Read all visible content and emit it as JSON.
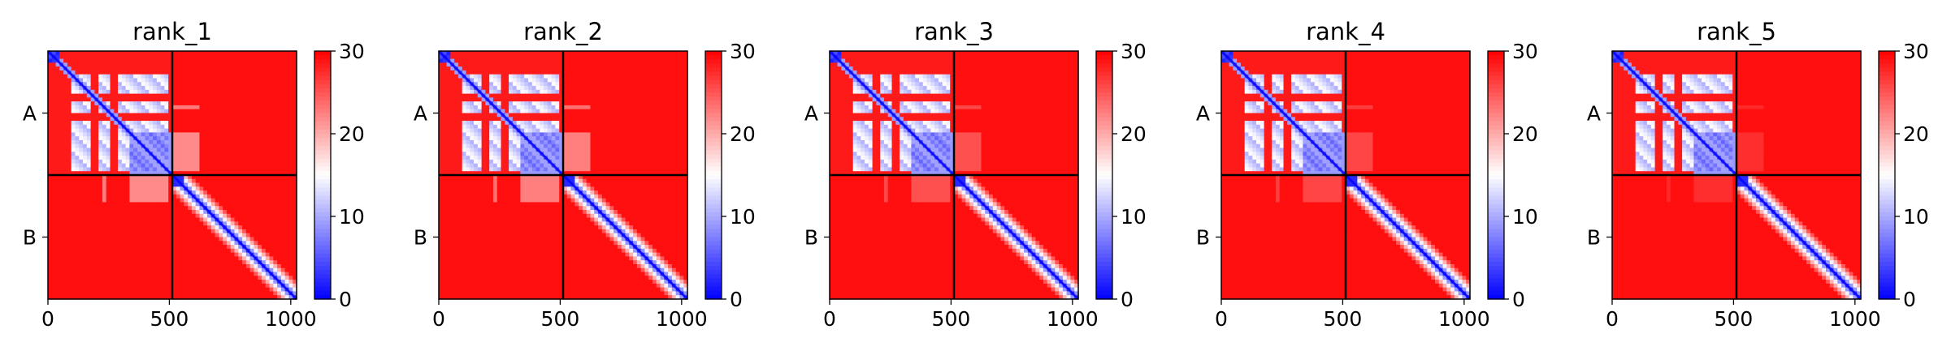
{
  "figure": {
    "colors": {
      "low": "#0000ff",
      "mid": "#ffffff",
      "high": "#ff0000",
      "boundary": "#000000"
    }
  },
  "chart_data": [
    {
      "type": "heatmap",
      "title": "rank_1",
      "xlabel": "",
      "ylabel": "",
      "xlim": [
        0,
        1024
      ],
      "x_ticks": [
        0,
        500,
        1000
      ],
      "x_tick_labels": [
        "0",
        "500",
        "1000"
      ],
      "chain_boundary": 512,
      "chains": [
        "A",
        "B"
      ],
      "colorbar": {
        "vmin": 0,
        "vmax": 30,
        "ticks": [
          0,
          10,
          20,
          30
        ],
        "tick_labels": [
          "0",
          "10",
          "20",
          "30"
        ]
      },
      "offdiag_level": 0.6
    },
    {
      "type": "heatmap",
      "title": "rank_2",
      "xlabel": "",
      "ylabel": "",
      "xlim": [
        0,
        1024
      ],
      "x_ticks": [
        0,
        500,
        1000
      ],
      "x_tick_labels": [
        "0",
        "500",
        "1000"
      ],
      "chain_boundary": 512,
      "chains": [
        "A",
        "B"
      ],
      "colorbar": {
        "vmin": 0,
        "vmax": 30,
        "ticks": [
          0,
          10,
          20,
          30
        ],
        "tick_labels": [
          "0",
          "10",
          "20",
          "30"
        ]
      },
      "offdiag_level": 0.55
    },
    {
      "type": "heatmap",
      "title": "rank_3",
      "xlabel": "",
      "ylabel": "",
      "xlim": [
        0,
        1024
      ],
      "x_ticks": [
        0,
        500,
        1000
      ],
      "x_tick_labels": [
        "0",
        "500",
        "1000"
      ],
      "chain_boundary": 512,
      "chains": [
        "A",
        "B"
      ],
      "colorbar": {
        "vmin": 0,
        "vmax": 30,
        "ticks": [
          0,
          10,
          20,
          30
        ],
        "tick_labels": [
          "0",
          "10",
          "20",
          "30"
        ]
      },
      "offdiag_level": 0.35
    },
    {
      "type": "heatmap",
      "title": "rank_4",
      "xlabel": "",
      "ylabel": "",
      "xlim": [
        0,
        1024
      ],
      "x_ticks": [
        0,
        500,
        1000
      ],
      "x_tick_labels": [
        "0",
        "500",
        "1000"
      ],
      "chain_boundary": 512,
      "chains": [
        "A",
        "B"
      ],
      "colorbar": {
        "vmin": 0,
        "vmax": 30,
        "ticks": [
          0,
          10,
          20,
          30
        ],
        "tick_labels": [
          "0",
          "10",
          "20",
          "30"
        ]
      },
      "offdiag_level": 0.3
    },
    {
      "type": "heatmap",
      "title": "rank_5",
      "xlabel": "",
      "ylabel": "",
      "xlim": [
        0,
        1024
      ],
      "x_ticks": [
        0,
        500,
        1000
      ],
      "x_tick_labels": [
        "0",
        "500",
        "1000"
      ],
      "chain_boundary": 512,
      "chains": [
        "A",
        "B"
      ],
      "colorbar": {
        "vmin": 0,
        "vmax": 30,
        "ticks": [
          0,
          10,
          20,
          30
        ],
        "tick_labels": [
          "0",
          "10",
          "20",
          "30"
        ]
      },
      "offdiag_level": 0.2
    }
  ]
}
